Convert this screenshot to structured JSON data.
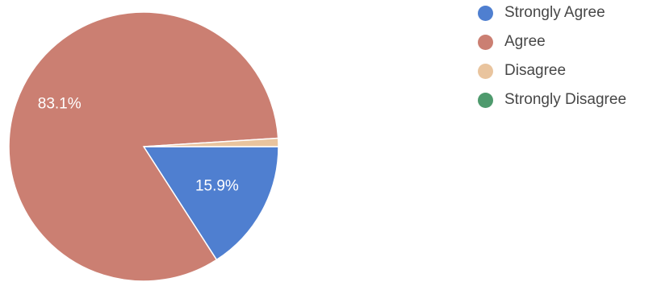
{
  "chart_data": {
    "type": "pie",
    "series": [
      {
        "name": "Strongly Agree",
        "value": 15.9,
        "label": "15.9%",
        "color": "#4f7fd0"
      },
      {
        "name": "Agree",
        "value": 83.1,
        "label": "83.1%",
        "color": "#cb7f72"
      },
      {
        "name": "Disagree",
        "value": 1.0,
        "label": "",
        "color": "#e9c49e"
      },
      {
        "name": "Strongly Disagree",
        "value": 0,
        "label": "",
        "color": "#4e9a6d"
      }
    ],
    "legend_position": "right"
  }
}
